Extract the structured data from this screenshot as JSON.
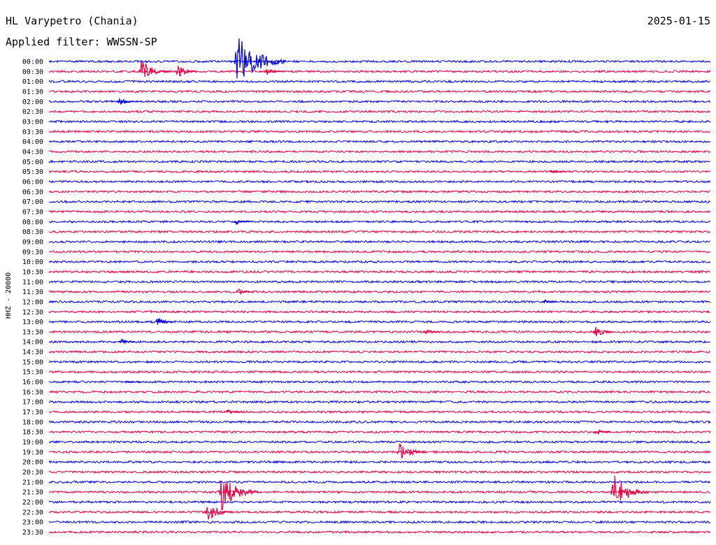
{
  "header": {
    "station": "HL Varypetro (Chania)",
    "date": "2025-01-15",
    "filter": "Applied filter: WWSSN-SP",
    "channel": "HHZ - 20000"
  },
  "colors": {
    "trace_a": "#0000ee",
    "trace_b": "#ee0044",
    "background": "#ffffff",
    "text": "#000000"
  },
  "chart_data": {
    "type": "line",
    "title": "HL Varypetro (Chania)",
    "subtitle": "Applied filter: WWSSN-SP",
    "ylabel": "HHZ - 20000",
    "xlabel": "",
    "grid": false,
    "legend": "none",
    "line_minutes": 30,
    "color_cycle": [
      "#0000ee",
      "#ee0044"
    ],
    "rows": [
      "00:00",
      "00:30",
      "01:00",
      "01:30",
      "02:00",
      "02:30",
      "03:00",
      "03:30",
      "04:00",
      "04:30",
      "05:00",
      "05:30",
      "06:00",
      "06:30",
      "07:00",
      "07:30",
      "08:00",
      "08:30",
      "09:00",
      "09:30",
      "10:00",
      "10:30",
      "11:00",
      "11:30",
      "12:00",
      "12:30",
      "13:00",
      "13:30",
      "14:00",
      "14:30",
      "15:00",
      "15:30",
      "16:00",
      "16:30",
      "17:00",
      "17:30",
      "18:00",
      "18:30",
      "19:00",
      "19:30",
      "20:00",
      "20:30",
      "21:00",
      "21:30",
      "22:00",
      "22:30",
      "23:00",
      "23:30"
    ],
    "events": [
      {
        "row": "00:00",
        "minute": 8.5,
        "amplitude": 2.6
      },
      {
        "row": "00:30",
        "minute": 4.2,
        "amplitude": 1.1
      },
      {
        "row": "00:30",
        "minute": 5.8,
        "amplitude": 0.7
      },
      {
        "row": "00:30",
        "minute": 9.9,
        "amplitude": 0.35
      },
      {
        "row": "02:00",
        "minute": 3.2,
        "amplitude": 0.35
      },
      {
        "row": "05:30",
        "minute": 22.8,
        "amplitude": 0.3
      },
      {
        "row": "08:00",
        "minute": 8.5,
        "amplitude": 0.25
      },
      {
        "row": "11:30",
        "minute": 8.6,
        "amplitude": 0.35
      },
      {
        "row": "12:00",
        "minute": 22.5,
        "amplitude": 0.2
      },
      {
        "row": "13:00",
        "minute": 4.9,
        "amplitude": 0.45
      },
      {
        "row": "13:30",
        "minute": 17.1,
        "amplitude": 0.35
      },
      {
        "row": "13:30",
        "minute": 24.8,
        "amplitude": 0.55
      },
      {
        "row": "14:00",
        "minute": 3.3,
        "amplitude": 0.25
      },
      {
        "row": "16:00",
        "minute": 3.6,
        "amplitude": 0.2
      },
      {
        "row": "17:30",
        "minute": 8.1,
        "amplitude": 0.3
      },
      {
        "row": "18:30",
        "minute": 24.8,
        "amplitude": 0.35
      },
      {
        "row": "19:30",
        "minute": 15.9,
        "amplitude": 1.0
      },
      {
        "row": "21:30",
        "minute": 7.8,
        "amplitude": 1.8
      },
      {
        "row": "21:30",
        "minute": 25.6,
        "amplitude": 1.7
      },
      {
        "row": "22:30",
        "minute": 7.2,
        "amplitude": 0.95
      }
    ]
  }
}
